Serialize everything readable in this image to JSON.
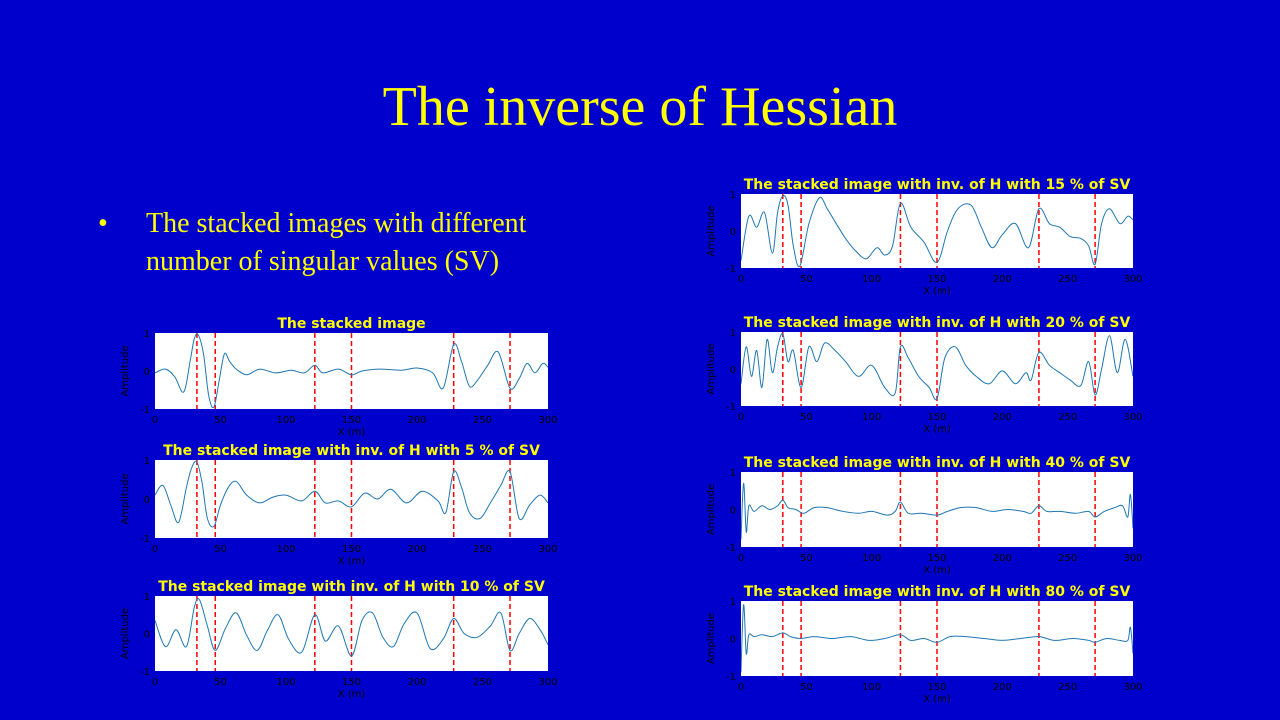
{
  "slide": {
    "title": "The inverse of Hessian",
    "bullet": "The stacked images with different number of singular values (SV)",
    "bullet_marker": "•"
  },
  "colors": {
    "background": "#0000cc",
    "title": "#ffff00",
    "plot_bg": "#ffffff",
    "trace": "#1f77b4",
    "marker": "#ff0000",
    "plot_title": "#ffff00"
  },
  "chart_data": [
    {
      "type": "line",
      "title": "The stacked image",
      "xlabel": "X (m)",
      "ylabel": "Amplitude",
      "xlim": [
        0,
        300
      ],
      "ylim": [
        -1,
        1
      ],
      "xticks": [
        "0",
        "50",
        "100",
        "150",
        "200",
        "250",
        "300"
      ],
      "yticks": [
        "1",
        "0",
        "-1"
      ],
      "markers_x": [
        32,
        46,
        122,
        150,
        228,
        271
      ],
      "x": [
        0,
        8,
        15,
        22,
        27,
        30,
        33,
        37,
        41,
        45,
        49,
        53,
        57,
        62,
        70,
        80,
        92,
        104,
        114,
        122,
        128,
        140,
        150,
        158,
        172,
        188,
        200,
        212,
        220,
        228,
        234,
        240,
        246,
        254,
        262,
        271,
        278,
        284,
        290,
        296,
        300
      ],
      "y": [
        -0.05,
        0.05,
        -0.15,
        -0.55,
        0.3,
        0.85,
        0.95,
        0.45,
        -0.65,
        -0.95,
        -0.25,
        0.45,
        0.25,
        0.05,
        -0.1,
        0.05,
        -0.05,
        0.02,
        -0.05,
        0.15,
        -0.05,
        0.05,
        -0.1,
        0.0,
        0.05,
        0.02,
        0.08,
        -0.05,
        -0.45,
        0.7,
        0.25,
        -0.4,
        -0.25,
        0.15,
        0.5,
        -0.45,
        -0.2,
        0.2,
        -0.05,
        0.2,
        0.1
      ]
    },
    {
      "type": "line",
      "title": "The stacked image with inv. of H with 5 % of SV",
      "xlabel": "X (m)",
      "ylabel": "Amplitude",
      "xlim": [
        0,
        300
      ],
      "ylim": [
        -1,
        1
      ],
      "xticks": [
        "0",
        "50",
        "100",
        "150",
        "200",
        "250",
        "300"
      ],
      "yticks": [
        "1",
        "0",
        "-1"
      ],
      "markers_x": [
        32,
        46,
        122,
        150,
        228,
        271
      ],
      "x": [
        0,
        6,
        12,
        18,
        24,
        28,
        32,
        36,
        40,
        45,
        50,
        56,
        62,
        70,
        80,
        90,
        100,
        112,
        122,
        130,
        140,
        150,
        160,
        170,
        180,
        192,
        204,
        216,
        222,
        228,
        234,
        240,
        248,
        256,
        264,
        271,
        278,
        286,
        294,
        300
      ],
      "y": [
        0.1,
        0.35,
        -0.15,
        -0.6,
        0.3,
        0.8,
        0.95,
        0.4,
        -0.5,
        -0.7,
        -0.15,
        0.3,
        0.45,
        0.1,
        -0.1,
        0.05,
        0.1,
        -0.05,
        0.2,
        -0.1,
        -0.05,
        -0.2,
        0.15,
        0.0,
        0.25,
        -0.1,
        0.2,
        -0.05,
        -0.35,
        0.7,
        0.3,
        -0.35,
        -0.5,
        -0.1,
        0.35,
        0.7,
        -0.5,
        -0.15,
        0.1,
        -0.1
      ]
    },
    {
      "type": "line",
      "title": "The stacked image with inv. of H with 10 % of SV",
      "xlabel": "X (m)",
      "ylabel": "Amplitude",
      "xlim": [
        0,
        300
      ],
      "ylim": [
        -1,
        1
      ],
      "xticks": [
        "0",
        "50",
        "100",
        "150",
        "200",
        "250",
        "300"
      ],
      "yticks": [
        "1",
        "0",
        "-1"
      ],
      "markers_x": [
        32,
        46,
        122,
        150,
        228,
        271
      ],
      "x": [
        0,
        8,
        16,
        24,
        30,
        34,
        40,
        46,
        54,
        62,
        70,
        78,
        86,
        94,
        102,
        112,
        122,
        130,
        140,
        150,
        158,
        166,
        174,
        182,
        190,
        200,
        210,
        220,
        228,
        236,
        246,
        256,
        264,
        271,
        278,
        286,
        294,
        300
      ],
      "y": [
        0.35,
        -0.35,
        0.1,
        -0.35,
        0.7,
        0.9,
        0.2,
        -0.45,
        0.15,
        0.55,
        -0.05,
        -0.45,
        0.1,
        0.5,
        -0.15,
        -0.5,
        0.5,
        -0.2,
        0.2,
        -0.6,
        0.35,
        0.55,
        -0.1,
        -0.35,
        0.25,
        0.55,
        -0.4,
        -0.15,
        0.4,
        0.0,
        -0.1,
        0.2,
        0.55,
        -0.45,
        0.0,
        0.4,
        0.1,
        -0.3
      ]
    },
    {
      "type": "line",
      "title": "The stacked image with inv. of H with 15 % of SV",
      "xlabel": "X (m)",
      "ylabel": "Amplitude",
      "xlim": [
        0,
        300
      ],
      "ylim": [
        -1,
        1
      ],
      "xticks": [
        "0",
        "50",
        "100",
        "150",
        "200",
        "250",
        "300"
      ],
      "yticks": [
        "1",
        "0",
        "-1"
      ],
      "markers_x": [
        32,
        46,
        122,
        150,
        228,
        271
      ],
      "x": [
        0,
        6,
        12,
        18,
        24,
        28,
        32,
        36,
        40,
        45,
        52,
        60,
        66,
        72,
        80,
        88,
        96,
        104,
        110,
        116,
        122,
        130,
        140,
        150,
        158,
        166,
        176,
        184,
        192,
        200,
        210,
        220,
        228,
        236,
        244,
        252,
        260,
        266,
        271,
        276,
        282,
        290,
        296,
        300
      ],
      "y": [
        -0.8,
        0.4,
        0.1,
        0.5,
        -0.6,
        0.5,
        0.95,
        0.7,
        -0.4,
        -0.95,
        0.2,
        0.9,
        0.6,
        0.25,
        -0.2,
        -0.55,
        -0.75,
        -0.45,
        -0.65,
        -0.4,
        0.75,
        0.1,
        -0.3,
        -0.85,
        0.0,
        0.6,
        0.7,
        0.1,
        -0.45,
        -0.1,
        0.2,
        -0.45,
        0.6,
        0.2,
        0.1,
        -0.15,
        -0.2,
        -0.4,
        -0.9,
        0.2,
        0.6,
        0.2,
        0.4,
        0.3
      ]
    },
    {
      "type": "line",
      "title": "The stacked image with inv. of H with 20 % of SV",
      "xlabel": "X (m)",
      "ylabel": "Amplitude",
      "xlim": [
        0,
        300
      ],
      "ylim": [
        -1,
        1
      ],
      "xticks": [
        "0",
        "50",
        "100",
        "150",
        "200",
        "250",
        "300"
      ],
      "yticks": [
        "1",
        "0",
        "-1"
      ],
      "markers_x": [
        32,
        46,
        122,
        150,
        228,
        271
      ],
      "x": [
        0,
        4,
        8,
        12,
        16,
        20,
        24,
        28,
        32,
        36,
        40,
        46,
        52,
        58,
        64,
        72,
        80,
        90,
        100,
        110,
        118,
        122,
        128,
        136,
        144,
        150,
        156,
        164,
        172,
        180,
        190,
        200,
        210,
        218,
        222,
        228,
        236,
        244,
        252,
        260,
        266,
        271,
        276,
        282,
        288,
        294,
        300
      ],
      "y": [
        -0.4,
        0.6,
        -0.2,
        0.5,
        -0.5,
        0.8,
        -0.1,
        0.6,
        0.95,
        0.2,
        0.5,
        -0.5,
        0.6,
        0.2,
        0.7,
        0.5,
        0.2,
        -0.2,
        0.1,
        -0.5,
        -0.65,
        0.6,
        0.3,
        -0.2,
        -0.5,
        -0.8,
        0.3,
        0.6,
        0.1,
        -0.2,
        -0.4,
        -0.05,
        -0.4,
        -0.1,
        -0.3,
        0.45,
        0.1,
        -0.1,
        -0.3,
        -0.45,
        0.2,
        -0.7,
        0.0,
        0.9,
        -0.1,
        0.8,
        -0.2
      ]
    },
    {
      "type": "line",
      "title": "The stacked image with inv. of H with 40 % of SV",
      "xlabel": "X (m)",
      "ylabel": "Amplitude",
      "xlim": [
        0,
        300
      ],
      "ylim": [
        -1,
        1
      ],
      "xticks": [
        "0",
        "50",
        "100",
        "150",
        "200",
        "250",
        "300"
      ],
      "yticks": [
        "1",
        "0",
        "-1"
      ],
      "markers_x": [
        32,
        46,
        122,
        150,
        228,
        271
      ],
      "x": [
        0,
        2,
        4,
        6,
        10,
        16,
        22,
        28,
        32,
        36,
        42,
        48,
        56,
        66,
        78,
        90,
        100,
        112,
        118,
        122,
        128,
        138,
        150,
        158,
        168,
        180,
        192,
        204,
        216,
        222,
        228,
        234,
        244,
        256,
        266,
        271,
        278,
        286,
        292,
        296,
        298,
        300
      ],
      "y": [
        -0.8,
        0.7,
        -0.6,
        0.1,
        -0.05,
        0.1,
        0.0,
        0.1,
        0.25,
        0.05,
        0.0,
        -0.1,
        0.05,
        0.05,
        -0.05,
        -0.1,
        -0.05,
        -0.15,
        -0.05,
        0.2,
        -0.1,
        -0.1,
        -0.15,
        -0.05,
        0.05,
        0.05,
        -0.05,
        0.0,
        -0.05,
        -0.1,
        0.1,
        -0.05,
        -0.05,
        -0.1,
        -0.05,
        -0.2,
        -0.05,
        0.05,
        0.1,
        -0.2,
        0.4,
        -0.5
      ]
    },
    {
      "type": "line",
      "title": "The stacked image with inv. of H with 80 % of SV",
      "xlabel": "X (m)",
      "ylabel": "Amplitude",
      "xlim": [
        0,
        300
      ],
      "ylim": [
        -1,
        1
      ],
      "xticks": [
        "0",
        "50",
        "100",
        "150",
        "200",
        "250",
        "300"
      ],
      "yticks": [
        "1",
        "0",
        "-1"
      ],
      "markers_x": [
        32,
        46,
        122,
        150,
        228,
        271
      ],
      "x": [
        0,
        2,
        4,
        6,
        10,
        16,
        24,
        32,
        38,
        46,
        56,
        70,
        84,
        98,
        110,
        122,
        130,
        140,
        150,
        160,
        172,
        186,
        200,
        214,
        228,
        240,
        254,
        266,
        271,
        280,
        290,
        296,
        298,
        300
      ],
      "y": [
        -0.9,
        0.9,
        -0.4,
        0.1,
        0.05,
        0.1,
        0.05,
        0.15,
        0.05,
        0.0,
        0.05,
        0.0,
        0.05,
        -0.05,
        0.0,
        0.1,
        -0.05,
        0.0,
        -0.1,
        0.05,
        0.05,
        0.0,
        -0.05,
        0.0,
        0.05,
        -0.05,
        0.0,
        -0.05,
        -0.1,
        0.0,
        -0.05,
        -0.05,
        0.3,
        -0.4
      ]
    }
  ]
}
